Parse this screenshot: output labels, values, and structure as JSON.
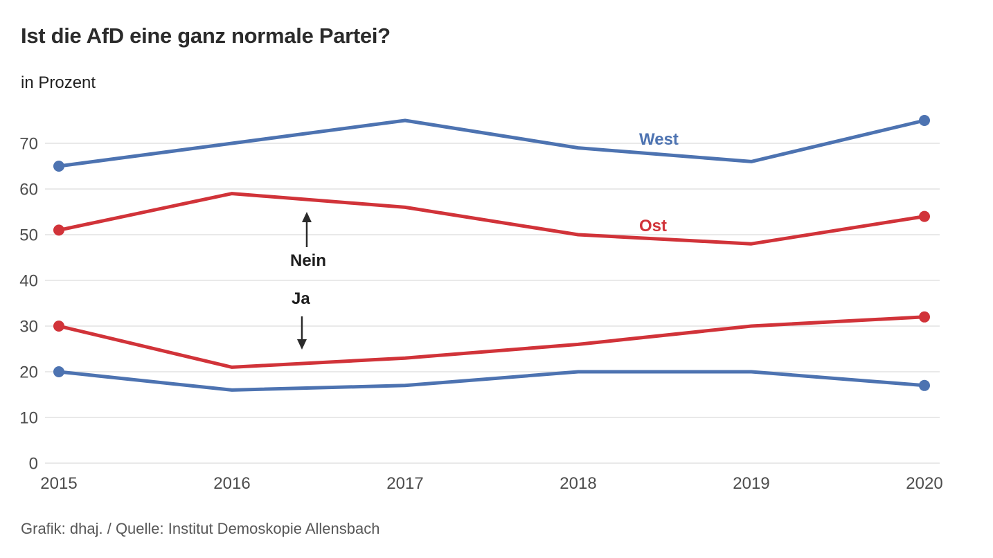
{
  "header": {
    "title": "Ist die AfD eine ganz normale Partei?",
    "subtitle": "in Prozent"
  },
  "footer": {
    "credit": "Grafik: dhaj. / Quelle: Institut Demoskopie Allensbach"
  },
  "colors": {
    "west": "#4d73b1",
    "ost": "#d13339",
    "grid": "#e9e9e9",
    "tick_text": "#4d4d4d",
    "annotation": "#2b2b2b"
  },
  "chart_data": {
    "type": "line",
    "title": "Ist die AfD eine ganz normale Partei?",
    "ylabel": "in Prozent",
    "xlabel": "",
    "x": [
      2015,
      2016,
      2017,
      2018,
      2019,
      2020
    ],
    "yticks": [
      0,
      10,
      20,
      30,
      40,
      50,
      60,
      70
    ],
    "ylim": [
      0,
      78
    ],
    "grid": "horizontal",
    "legend_position": "inline-right",
    "series": [
      {
        "name": "West (Nein)",
        "group": "West",
        "answer": "Nein",
        "color_key": "west",
        "values": [
          65,
          70,
          75,
          69,
          66,
          75
        ]
      },
      {
        "name": "Ost (Nein)",
        "group": "Ost",
        "answer": "Nein",
        "color_key": "ost",
        "values": [
          51,
          59,
          56,
          50,
          48,
          54
        ]
      },
      {
        "name": "Ost (Ja)",
        "group": "Ost",
        "answer": "Ja",
        "color_key": "ost",
        "values": [
          30,
          21,
          23,
          26,
          30,
          32
        ]
      },
      {
        "name": "West (Ja)",
        "group": "West",
        "answer": "Ja",
        "color_key": "west",
        "values": [
          20,
          16,
          17,
          20,
          20,
          17
        ]
      }
    ],
    "series_labels": {
      "west": "West",
      "ost": "Ost"
    },
    "annotations": [
      {
        "text": "Nein",
        "arrow": "up"
      },
      {
        "text": "Ja",
        "arrow": "down"
      }
    ]
  }
}
